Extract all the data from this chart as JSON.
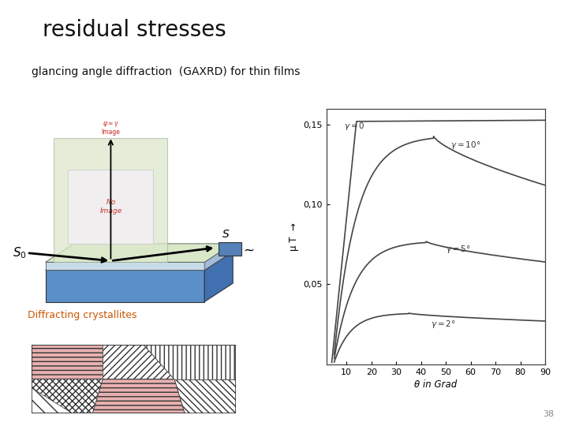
{
  "title": "residual stresses",
  "subtitle": "glancing angle diffraction  (GAXRD) for thin films",
  "title_fontsize": 20,
  "subtitle_fontsize": 10,
  "page_number": "38",
  "graph": {
    "xlabel": "θ in Grad",
    "ylabel": "μ T",
    "ytick_labels": [
      "0,05",
      "0,10",
      "0,15"
    ],
    "yticks": [
      0.05,
      0.1,
      0.15
    ],
    "xticks": [
      10,
      20,
      30,
      40,
      50,
      60,
      70,
      80,
      90
    ],
    "xlim": [
      2,
      90
    ],
    "ylim": [
      0.0,
      0.16
    ]
  },
  "colors": {
    "title": "#111111",
    "subtitle": "#111111",
    "box_face": "#e8edd8",
    "box_edge": "#999999",
    "inner_face": "#f5f5f0",
    "inner_edge": "#aaaaaa",
    "film_light": "#c8dce8",
    "film_top": "#d8e8c8",
    "substrate_front": "#5b8fc8",
    "substrate_side": "#4070b0",
    "substrate_top": "#7aaad0",
    "detector": "#5580b8",
    "beam": "#111111",
    "red_text": "#cc2222",
    "graph_line": "#444444",
    "diffracting_label": "#cc5500",
    "page_num": "#888888",
    "cryst_pink": "#e8b0b0",
    "cryst_line": "#333333"
  }
}
